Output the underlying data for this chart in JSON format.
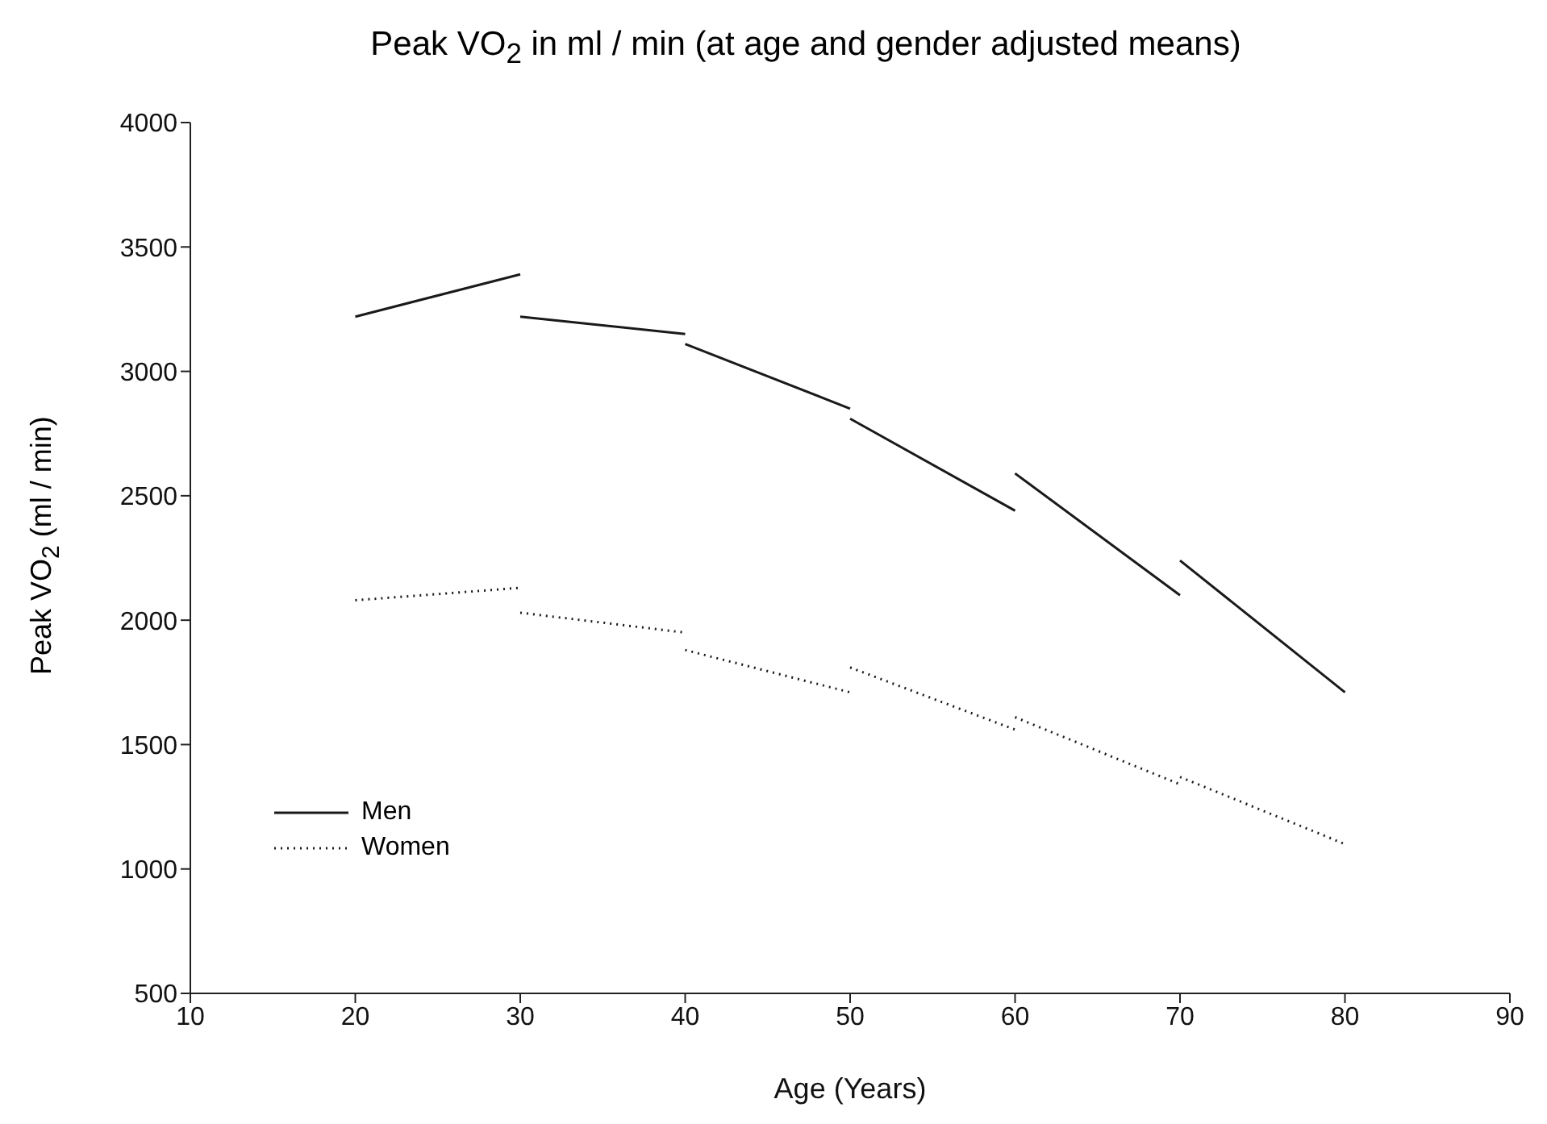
{
  "chart_data": {
    "type": "line",
    "title": "Peak VO$_{2}$ in ml / min (at age and gender adjusted means)",
    "xlabel": "Age (Years)",
    "ylabel": "Peak VO$_{2}$ (ml / min)",
    "xlim": [
      10,
      90
    ],
    "xticks": [
      10,
      20,
      30,
      40,
      50,
      60,
      70,
      80,
      90
    ],
    "ylim": [
      500,
      4000
    ],
    "yticks": [
      500,
      1000,
      1500,
      2000,
      2500,
      3000,
      3500,
      4000
    ],
    "grid": false,
    "legend": "bottom left",
    "marker": "none",
    "series": [
      {
        "name": "Men",
        "color": "#1a1a1a",
        "line_style": "solid",
        "x": [
          20,
          30,
          30,
          40,
          40,
          50,
          50,
          60,
          60,
          70,
          70,
          80
        ],
        "values": [
          3220,
          3390,
          3220,
          3150,
          3110,
          2850,
          2810,
          2440,
          2590,
          2100,
          2240,
          1710
        ]
      },
      {
        "name": "Women",
        "color": "#1a1a1a",
        "line_style": "dotted",
        "x": [
          20,
          30,
          30,
          40,
          40,
          50,
          50,
          60,
          60,
          70,
          70,
          80
        ],
        "values": [
          2080,
          2130,
          2030,
          1950,
          1880,
          1710,
          1810,
          1560,
          1610,
          1340,
          1370,
          1100
        ]
      }
    ]
  }
}
